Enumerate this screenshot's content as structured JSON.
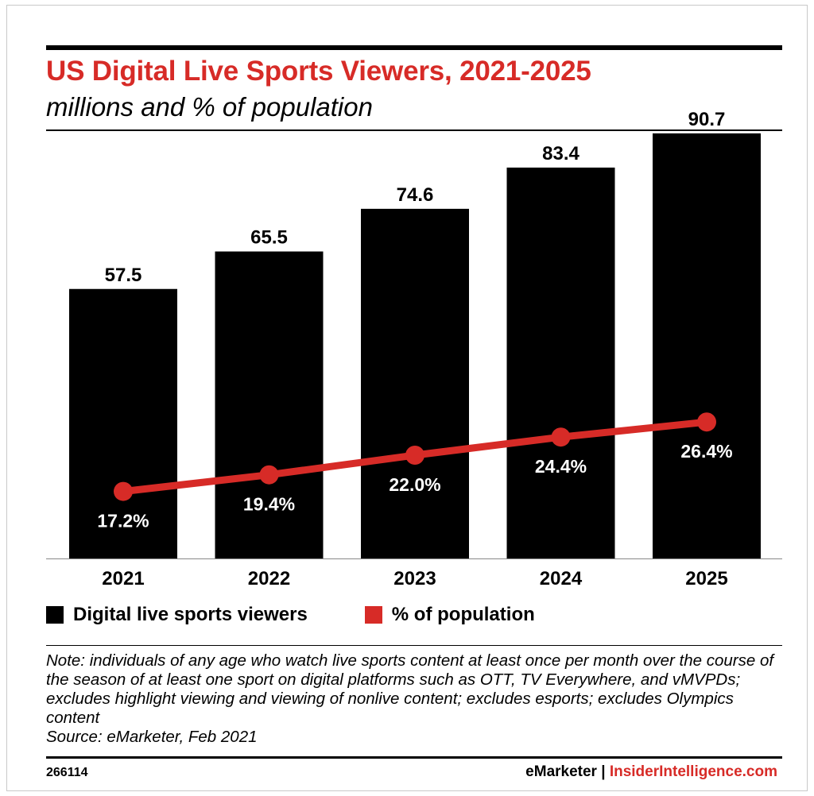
{
  "title": "US Digital Live Sports Viewers, 2021-2025",
  "subtitle": "millions and % of population",
  "colors": {
    "bar": "#000000",
    "line": "#d72b27",
    "accent": "#d72b27"
  },
  "legend": {
    "bars": "Digital live sports viewers",
    "line": "% of population"
  },
  "note": "Note: individuals of any age who watch live sports content at least once per month over the course of the season of at least one sport on digital platforms such as OTT, TV Everywhere, and vMVPDs; excludes highlight viewing and viewing of nonlive content; excludes esports; excludes Olympics content",
  "source": "Source: eMarketer, Feb 2021",
  "footer": {
    "id": "266114",
    "brand": "eMarketer",
    "separator": " | ",
    "site": "InsiderIntelligence.com"
  },
  "chart_data": {
    "type": "bar",
    "categories": [
      "2021",
      "2022",
      "2023",
      "2024",
      "2025"
    ],
    "series": [
      {
        "name": "Digital live sports viewers",
        "type": "bar",
        "values": [
          57.5,
          65.5,
          74.6,
          83.4,
          90.7
        ],
        "labels": [
          "57.5",
          "65.5",
          "74.6",
          "83.4",
          "90.7"
        ]
      },
      {
        "name": "% of population",
        "type": "line",
        "values": [
          17.2,
          19.4,
          22.0,
          24.4,
          26.4
        ],
        "labels": [
          "17.2%",
          "19.4%",
          "22.0%",
          "24.4%",
          "26.4%"
        ]
      }
    ],
    "ylim_bars": [
      0,
      100
    ],
    "ylim_line": [
      0,
      40
    ],
    "grid": false,
    "legend_position": "bottom-left"
  }
}
